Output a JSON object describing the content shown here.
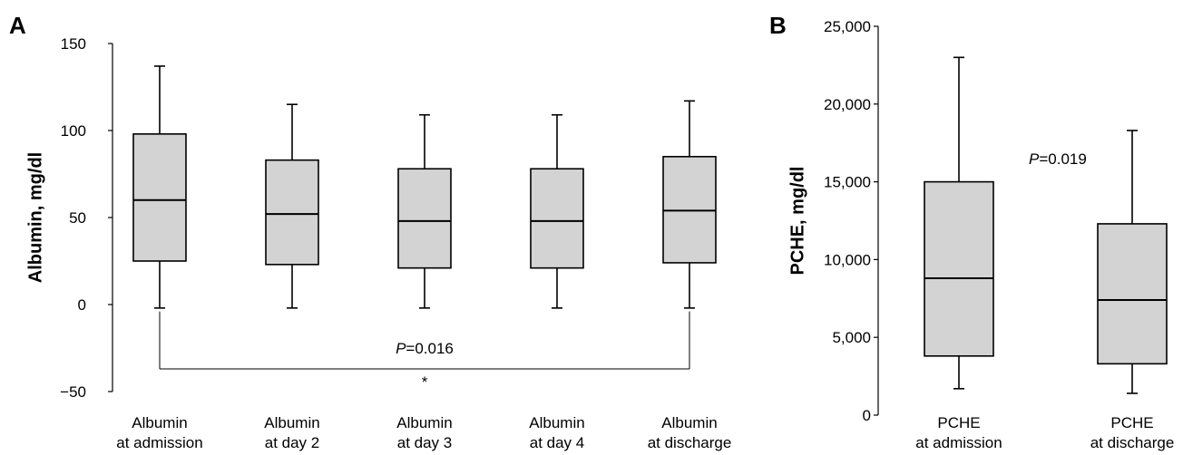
{
  "chart_data": [
    {
      "panel_label": "A",
      "type": "box",
      "ylabel": "Albumin, mg/dl",
      "ylim": [
        -50,
        150
      ],
      "yticks": [
        "−50",
        "0",
        "50",
        "100",
        "150"
      ],
      "ytick_values": [
        -50,
        0,
        50,
        100,
        150
      ],
      "categories": [
        [
          "Albumin",
          "at admission"
        ],
        [
          "Albumin",
          "at day 2"
        ],
        [
          "Albumin",
          "at day 3"
        ],
        [
          "Albumin",
          "at day 4"
        ],
        [
          "Albumin",
          "at discharge"
        ]
      ],
      "boxes": [
        {
          "min": -2,
          "q1": 25,
          "median": 60,
          "q3": 98,
          "max": 137
        },
        {
          "min": -2,
          "q1": 23,
          "median": 52,
          "q3": 83,
          "max": 115
        },
        {
          "min": -2,
          "q1": 21,
          "median": 48,
          "q3": 78,
          "max": 109
        },
        {
          "min": -2,
          "q1": 21,
          "median": 48,
          "q3": 78,
          "max": 109
        },
        {
          "min": -2,
          "q1": 24,
          "median": 54,
          "q3": 85,
          "max": 117
        }
      ],
      "annotation": {
        "p_prefix": "P",
        "p_value": "=0.016",
        "star": "*",
        "from": 0,
        "to": 4,
        "bracket_y": -37,
        "text_y": -25
      }
    },
    {
      "panel_label": "B",
      "type": "box",
      "ylabel": "PCHE, mg/dl",
      "ylim": [
        0,
        25000
      ],
      "yticks": [
        "0",
        "5,000",
        "10,000",
        "15,000",
        "20,000",
        "25,000"
      ],
      "ytick_values": [
        0,
        5000,
        10000,
        15000,
        20000,
        25000
      ],
      "categories": [
        [
          "PCHE",
          "at admission"
        ],
        [
          "PCHE",
          "at discharge"
        ]
      ],
      "boxes": [
        {
          "min": 1700,
          "q1": 3800,
          "median": 8800,
          "q3": 15000,
          "max": 23000
        },
        {
          "min": 1400,
          "q1": 3300,
          "median": 7400,
          "q3": 12300,
          "max": 18300
        }
      ],
      "annotation": {
        "p_prefix": "P",
        "p_value": "=0.019",
        "text_value": 16500
      }
    }
  ],
  "colors": {
    "box_fill": "#d3d3d3",
    "stroke": "#000000"
  }
}
